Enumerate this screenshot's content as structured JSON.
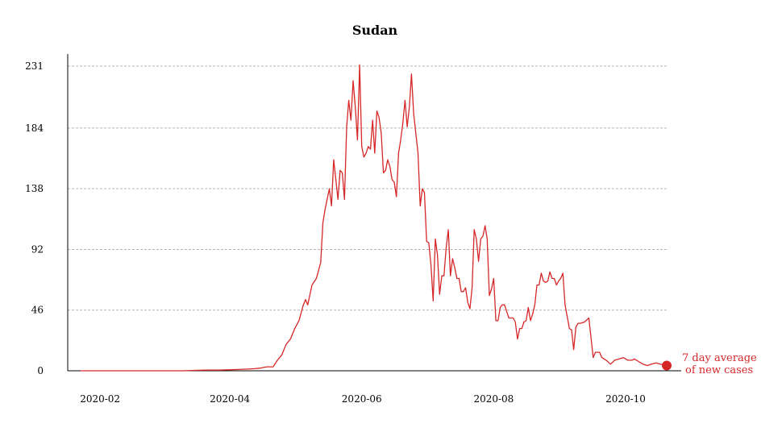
{
  "chart_data": {
    "type": "line",
    "title": "Sudan",
    "xlabel": "",
    "ylabel": "",
    "ylim": [
      0,
      231
    ],
    "yticks": [
      0,
      46,
      92,
      138,
      184,
      231
    ],
    "xlim": [
      "2020-01-23",
      "2020-10-20"
    ],
    "xticks": [
      "2020-02",
      "2020-04",
      "2020-06",
      "2020-08",
      "2020-10"
    ],
    "grid": "horizontal",
    "color": "#d62728",
    "annotation": [
      "7 day average",
      "of new cases"
    ],
    "series": [
      {
        "x": [
          "2020-01-23",
          "2020-02-21",
          "2020-03-10",
          "2020-03-20",
          "2020-03-27",
          "2020-04-05",
          "2020-04-12",
          "2020-04-15",
          "2020-04-18",
          "2020-04-21",
          "2020-04-23",
          "2020-04-25",
          "2020-04-27",
          "2020-04-29",
          "2020-05-01",
          "2020-05-03",
          "2020-05-05",
          "2020-05-06",
          "2020-05-07",
          "2020-05-09",
          "2020-05-11",
          "2020-05-13",
          "2020-05-14",
          "2020-05-15",
          "2020-05-16",
          "2020-05-17",
          "2020-05-18",
          "2020-05-19",
          "2020-05-21",
          "2020-05-22",
          "2020-05-23",
          "2020-05-24",
          "2020-05-25",
          "2020-05-26",
          "2020-05-27",
          "2020-05-28",
          "2020-05-29",
          "2020-05-30",
          "2020-05-31",
          "2020-06-01",
          "2020-06-02",
          "2020-06-03",
          "2020-06-04",
          "2020-06-05",
          "2020-06-06",
          "2020-06-07",
          "2020-06-08",
          "2020-06-09",
          "2020-06-10",
          "2020-06-11",
          "2020-06-12",
          "2020-06-13",
          "2020-06-14",
          "2020-06-15",
          "2020-06-16",
          "2020-06-17",
          "2020-06-18",
          "2020-06-19",
          "2020-06-20",
          "2020-06-21",
          "2020-06-22",
          "2020-06-23",
          "2020-06-24",
          "2020-06-25",
          "2020-06-26",
          "2020-06-27",
          "2020-06-28",
          "2020-06-29",
          "2020-06-30",
          "2020-07-01",
          "2020-07-02",
          "2020-07-03",
          "2020-07-04",
          "2020-07-05",
          "2020-07-06",
          "2020-07-07",
          "2020-07-08",
          "2020-07-09",
          "2020-07-10",
          "2020-07-11",
          "2020-07-12",
          "2020-07-13",
          "2020-07-14",
          "2020-07-15",
          "2020-07-16",
          "2020-07-17",
          "2020-07-18",
          "2020-07-19",
          "2020-07-20",
          "2020-07-21",
          "2020-07-22",
          "2020-07-23",
          "2020-07-24",
          "2020-07-25",
          "2020-07-26",
          "2020-07-27",
          "2020-07-28",
          "2020-07-29",
          "2020-07-30",
          "2020-07-31",
          "2020-08-01",
          "2020-08-02",
          "2020-08-03",
          "2020-08-04",
          "2020-08-05",
          "2020-08-06",
          "2020-08-07",
          "2020-08-08",
          "2020-08-09",
          "2020-08-10",
          "2020-08-11",
          "2020-08-12",
          "2020-08-13",
          "2020-08-14",
          "2020-08-15",
          "2020-08-16",
          "2020-08-17",
          "2020-08-18",
          "2020-08-19",
          "2020-08-20",
          "2020-08-21",
          "2020-08-22",
          "2020-08-23",
          "2020-08-24",
          "2020-08-25",
          "2020-08-26",
          "2020-08-27",
          "2020-08-28",
          "2020-08-29",
          "2020-08-30",
          "2020-08-31",
          "2020-09-01",
          "2020-09-02",
          "2020-09-03",
          "2020-09-05",
          "2020-09-06",
          "2020-09-07",
          "2020-09-08",
          "2020-09-09",
          "2020-09-10",
          "2020-09-12",
          "2020-09-14",
          "2020-09-16",
          "2020-09-17",
          "2020-09-19",
          "2020-09-20",
          "2020-09-22",
          "2020-09-24",
          "2020-09-26",
          "2020-09-28",
          "2020-09-30",
          "2020-10-02",
          "2020-10-04",
          "2020-10-05",
          "2020-10-07",
          "2020-10-09",
          "2020-10-11",
          "2020-10-13",
          "2020-10-15",
          "2020-10-17",
          "2020-10-20"
        ],
        "y": [
          0,
          0,
          0,
          0.5,
          0.5,
          1,
          1.5,
          2,
          3,
          3,
          8,
          12,
          20,
          24,
          32,
          38,
          50,
          54,
          50,
          65,
          70,
          82,
          112,
          122,
          130,
          138,
          125,
          160,
          130,
          152,
          150,
          130,
          185,
          205,
          190,
          220,
          200,
          175,
          232,
          170,
          162,
          165,
          170,
          168,
          190,
          165,
          197,
          192,
          180,
          150,
          152,
          160,
          155,
          145,
          143,
          132,
          165,
          175,
          188,
          205,
          185,
          200,
          225,
          195,
          180,
          165,
          125,
          138,
          135,
          98,
          97,
          80,
          53,
          100,
          88,
          58,
          72,
          72,
          93,
          107,
          72,
          85,
          78,
          70,
          70,
          60,
          60,
          63,
          52,
          47,
          63,
          107,
          100,
          83,
          100,
          102,
          110,
          100,
          57,
          62,
          70,
          38,
          38,
          48,
          50,
          50,
          45,
          40,
          40,
          40,
          37,
          24,
          32,
          32,
          37,
          38,
          48,
          38,
          43,
          50,
          65,
          65,
          74,
          68,
          67,
          68,
          75,
          70,
          70,
          65,
          68,
          70,
          74,
          50,
          32,
          31,
          16,
          33,
          36,
          36,
          37,
          40,
          10,
          14,
          14,
          10,
          8,
          5,
          8,
          9,
          10,
          8,
          8,
          9,
          7,
          5,
          4,
          5,
          6,
          5,
          4
        ]
      }
    ]
  }
}
